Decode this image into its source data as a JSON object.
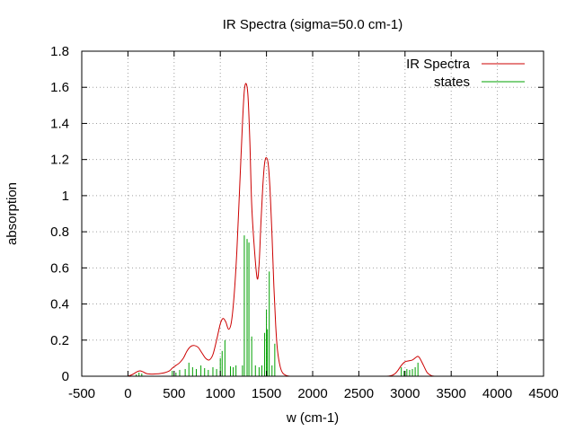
{
  "chart_data": {
    "type": "line",
    "title": "IR Spectra (sigma=50.0 cm-1)",
    "xlabel": "w (cm-1)",
    "ylabel": "absorption",
    "xlim": [
      -500,
      4500
    ],
    "ylim": [
      0,
      1.8
    ],
    "xticks": [
      -500,
      0,
      500,
      1000,
      1500,
      2000,
      2500,
      3000,
      3500,
      4000,
      4500
    ],
    "xtick_labels": [
      "-500",
      "0",
      "500",
      "1000",
      "1500",
      "2000",
      "2500",
      "3000",
      "3500",
      "4000",
      "4500"
    ],
    "yticks": [
      0,
      0.2,
      0.4,
      0.6,
      0.8,
      1,
      1.2,
      1.4,
      1.6,
      1.8
    ],
    "ytick_labels": [
      "0",
      "0.2",
      "0.4",
      "0.6",
      "0.8",
      "1",
      "1.2",
      "1.4",
      "1.6",
      "1.8"
    ],
    "grid": true,
    "legend_position": "top-right",
    "series": [
      {
        "name": "IR Spectra",
        "kind": "line",
        "color": "#cc0000",
        "x": [
          0,
          50,
          100,
          130,
          160,
          200,
          250,
          300,
          350,
          400,
          450,
          480,
          520,
          560,
          600,
          640,
          680,
          720,
          760,
          800,
          840,
          880,
          920,
          960,
          1000,
          1030,
          1060,
          1090,
          1120,
          1150,
          1180,
          1210,
          1240,
          1260,
          1280,
          1300,
          1320,
          1340,
          1370,
          1400,
          1420,
          1440,
          1460,
          1480,
          1500,
          1520,
          1540,
          1560,
          1580,
          1600,
          1620,
          1650,
          1680,
          1720,
          1760,
          1800,
          2000,
          2500,
          2800,
          2880,
          2920,
          2960,
          3000,
          3040,
          3080,
          3120,
          3140,
          3160,
          3200,
          3240,
          3280,
          3320,
          3500,
          4000,
          4300
        ],
        "y": [
          0.0,
          0.01,
          0.025,
          0.03,
          0.025,
          0.015,
          0.012,
          0.013,
          0.015,
          0.02,
          0.03,
          0.045,
          0.06,
          0.075,
          0.1,
          0.14,
          0.165,
          0.17,
          0.16,
          0.13,
          0.1,
          0.09,
          0.12,
          0.2,
          0.29,
          0.32,
          0.3,
          0.26,
          0.3,
          0.45,
          0.7,
          1.05,
          1.4,
          1.58,
          1.62,
          1.55,
          1.3,
          0.95,
          0.7,
          0.54,
          0.62,
          0.85,
          1.05,
          1.18,
          1.21,
          1.17,
          1.02,
          0.78,
          0.5,
          0.28,
          0.14,
          0.05,
          0.015,
          0.003,
          0.0,
          0.0,
          0.0,
          0.0,
          0.0,
          0.01,
          0.03,
          0.06,
          0.08,
          0.085,
          0.09,
          0.105,
          0.11,
          0.1,
          0.06,
          0.02,
          0.005,
          0.0,
          0.0,
          0.0,
          0.0
        ]
      },
      {
        "name": "states",
        "kind": "impulses",
        "color": "#00a000",
        "x": [
          90,
          120,
          150,
          480,
          520,
          560,
          620,
          660,
          700,
          740,
          790,
          830,
          870,
          920,
          960,
          1000,
          1020,
          1050,
          1110,
          1140,
          1170,
          1240,
          1260,
          1290,
          1310,
          1340,
          1380,
          1420,
          1450,
          1480,
          1500,
          1510,
          1530,
          1560,
          1590,
          2960,
          2990,
          3020,
          3050,
          3080,
          3110,
          3140
        ],
        "y": [
          0.01,
          0.02,
          0.015,
          0.03,
          0.02,
          0.035,
          0.04,
          0.075,
          0.05,
          0.04,
          0.06,
          0.045,
          0.035,
          0.05,
          0.04,
          0.1,
          0.14,
          0.2,
          0.055,
          0.05,
          0.06,
          0.06,
          0.78,
          0.76,
          0.74,
          0.22,
          0.06,
          0.05,
          0.06,
          0.24,
          0.37,
          0.26,
          0.58,
          0.06,
          0.18,
          0.05,
          0.03,
          0.04,
          0.035,
          0.04,
          0.05,
          0.075
        ]
      }
    ]
  }
}
